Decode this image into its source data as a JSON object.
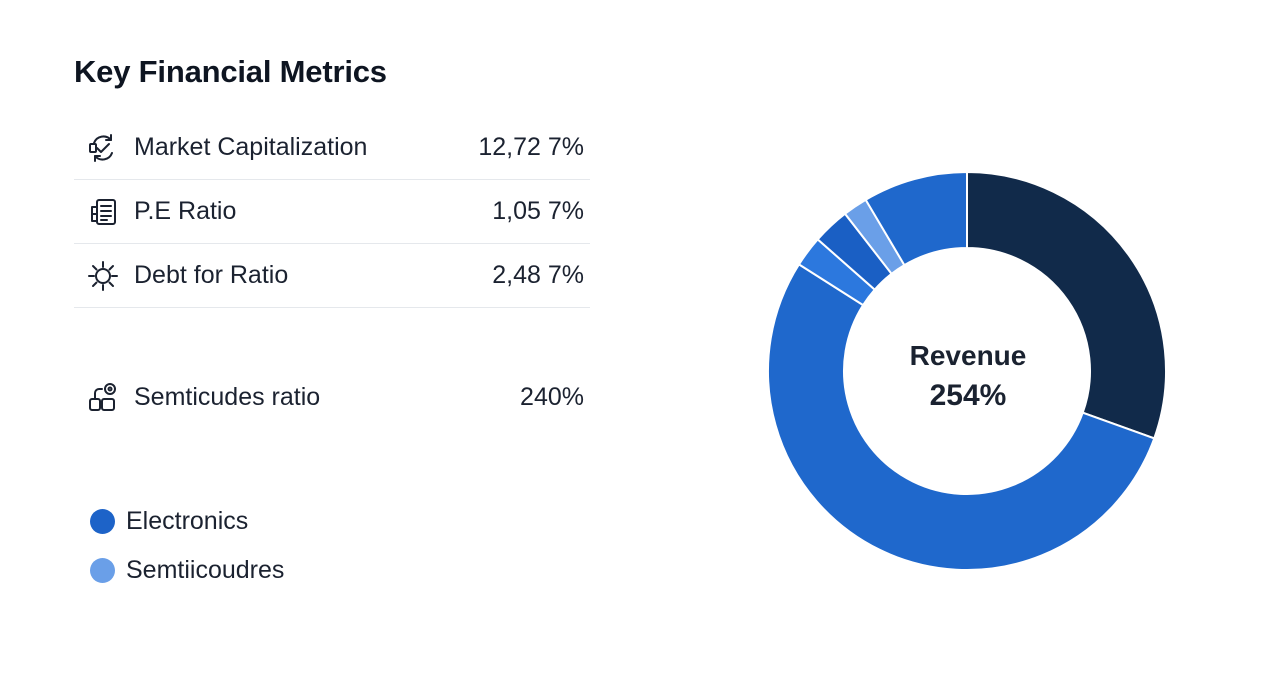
{
  "title": "Key Financial Metrics",
  "metrics": [
    {
      "icon": "refresh-check-icon",
      "label": "Market Capitalization",
      "value": "12,72 7%"
    },
    {
      "icon": "document-list-icon",
      "label": "P.E Ratio",
      "value": "1,05 7%"
    },
    {
      "icon": "sun-gear-icon",
      "label": "Debt for Ratio",
      "value": "2,48 7%"
    },
    {
      "icon": "blocks-target-icon",
      "label": "Semticudes ratio",
      "value": "240%"
    }
  ],
  "legend": [
    {
      "label": "Electronics",
      "color": "#1d63c8"
    },
    {
      "label": "Semtiicoudres",
      "color": "#6a9fe8"
    }
  ],
  "colors": {
    "navy": "#112a4a",
    "blue": "#1f68cc",
    "mid_blue": "#2c78de",
    "light_blue": "#6a9fe8"
  },
  "chart_data": {
    "type": "pie",
    "variant": "donut",
    "center_label": "Revenue",
    "center_value": "254%",
    "slices": [
      {
        "value": 30.5,
        "color": "#112a4a"
      },
      {
        "value": 53.5,
        "color": "#1f68cc"
      },
      {
        "value": 2.5,
        "color": "#2c78de"
      },
      {
        "value": 3.0,
        "color": "#1a5fc4"
      },
      {
        "value": 2.0,
        "color": "#6a9fe8"
      },
      {
        "value": 8.5,
        "color": "#1f68cc"
      }
    ]
  }
}
